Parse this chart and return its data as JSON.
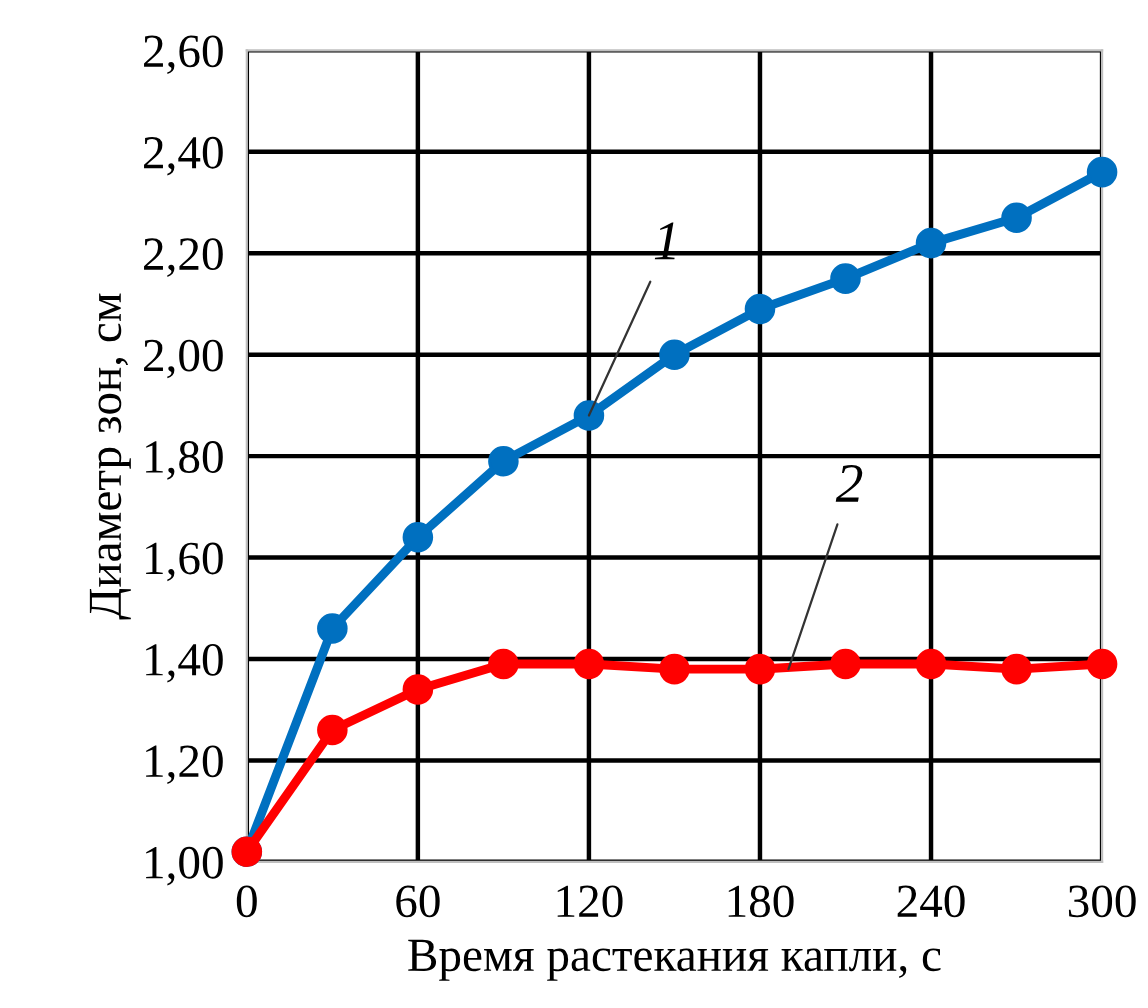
{
  "chart_data": {
    "type": "line",
    "xlabel": "Время растекания капли, с",
    "ylabel": "Диаметр зон, см",
    "x": [
      0,
      30,
      60,
      90,
      120,
      150,
      180,
      210,
      240,
      270,
      300
    ],
    "series": [
      {
        "color": "#0070c0",
        "values": [
          1.02,
          1.46,
          1.64,
          1.79,
          1.88,
          2.0,
          2.09,
          2.15,
          2.22,
          2.27,
          2.36
        ]
      },
      {
        "color": "#ff0000",
        "values": [
          1.02,
          1.26,
          1.34,
          1.39,
          1.39,
          1.38,
          1.38,
          1.39,
          1.39,
          1.38,
          1.39
        ]
      }
    ],
    "annotations": [
      {
        "text": "1",
        "x": 120,
        "y": 1.88
      },
      {
        "text": "2",
        "x": 190,
        "y": 1.38
      }
    ],
    "xlim": [
      0,
      300
    ],
    "xticks": [
      0,
      60,
      120,
      180,
      240,
      300
    ],
    "ylim": [
      1.0,
      2.6
    ],
    "yticks": [
      {
        "value": 1.0,
        "label": "1,00"
      },
      {
        "value": 1.2,
        "label": "1,20"
      },
      {
        "value": 1.4,
        "label": "1,40"
      },
      {
        "value": 1.6,
        "label": "1,60"
      },
      {
        "value": 1.8,
        "label": "1,80"
      },
      {
        "value": 2.0,
        "label": "2,00"
      },
      {
        "value": 2.2,
        "label": "2,20"
      },
      {
        "value": 2.4,
        "label": "2,40"
      },
      {
        "value": 2.6,
        "label": "2,60"
      }
    ],
    "grid": true,
    "marker": "circle",
    "line_style": "solid",
    "legend": false
  }
}
